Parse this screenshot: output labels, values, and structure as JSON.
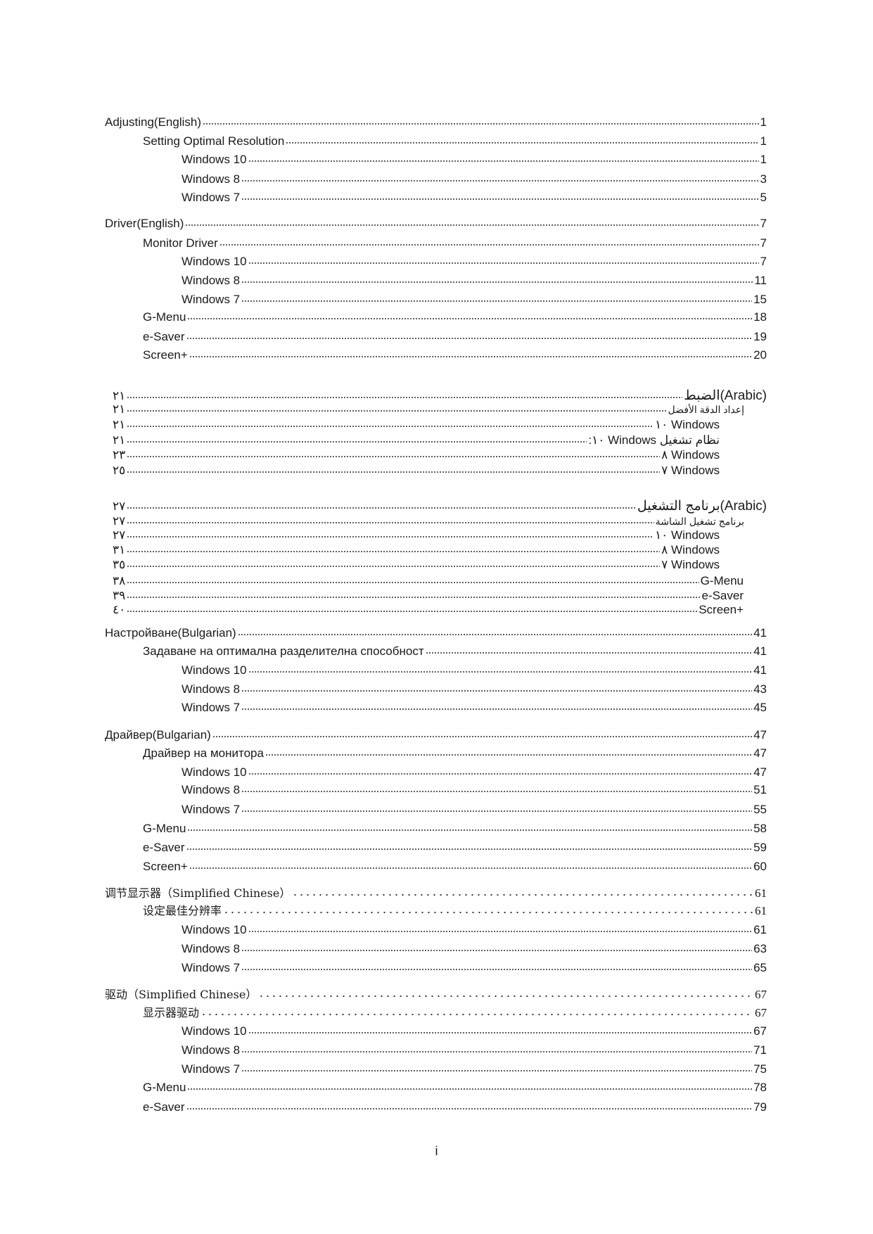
{
  "toc": [
    {
      "text": "Adjusting(English)",
      "page": "1",
      "level": 0
    },
    {
      "text": "Setting Optimal Resolution",
      "page": "1",
      "level": 1
    },
    {
      "text": "Windows 10",
      "page": "1",
      "level": 2
    },
    {
      "text": "Windows 8",
      "page": "3",
      "level": 2
    },
    {
      "text": "Windows 7",
      "page": "5",
      "level": 2
    },
    {
      "text": "Driver(English)",
      "page": "7",
      "level": 0
    },
    {
      "text": "Monitor Driver",
      "page": "7",
      "level": 1
    },
    {
      "text": "Windows 10",
      "page": "7",
      "level": 2
    },
    {
      "text": "Windows 8",
      "page": "11",
      "level": 2
    },
    {
      "text": "Windows 7",
      "page": "15",
      "level": 2
    },
    {
      "text": "G-Menu",
      "page": "18",
      "level": 1
    },
    {
      "text": "e-Saver",
      "page": "19",
      "level": 1
    },
    {
      "text": "Screen+",
      "page": "20",
      "level": 1
    },
    {
      "text": "الضبط(Arabic)",
      "page": "٢١",
      "level": "ar-h"
    },
    {
      "text": "إعداد الدقة الأفضل",
      "page": "٢١",
      "level": "ar-sub"
    },
    {
      "text": "١٠ Windows",
      "page": "٢١",
      "level": "ar-win"
    },
    {
      "text": ":١٠ Windows نظام تشغيل",
      "page": "٢١",
      "level": "ar-win"
    },
    {
      "text": "٨ Windows",
      "page": "٢٣",
      "level": "ar-win"
    },
    {
      "text": "٧ Windows",
      "page": "٢٥",
      "level": "ar-win"
    },
    {
      "text": "برنامج التشغيل(Arabic)",
      "page": "٢٧",
      "level": "ar-h"
    },
    {
      "text": "برنامج تشغيل الشاشة",
      "page": "٢٧",
      "level": "ar-sub"
    },
    {
      "text": "١٠ Windows",
      "page": "٢٧",
      "level": "ar-win"
    },
    {
      "text": "٨ Windows",
      "page": "٣١",
      "level": "ar-win"
    },
    {
      "text": "٧ Windows",
      "page": "٣٥",
      "level": "ar-win"
    },
    {
      "text": "G-Menu",
      "page": "٣٨",
      "level": "ar-item"
    },
    {
      "text": "e-Saver",
      "page": "٣٩",
      "level": "ar-item"
    },
    {
      "text": "Screen+",
      "page": "٤٠",
      "level": "ar-item"
    },
    {
      "text": "Настройване(Bulgarian)",
      "page": "41",
      "level": 0
    },
    {
      "text": "Задаване на оптимална разделителна способност",
      "page": "41",
      "level": 1
    },
    {
      "text": "Windows 10",
      "page": "41",
      "level": 2
    },
    {
      "text": "Windows 8",
      "page": "43",
      "level": 2
    },
    {
      "text": "Windows 7",
      "page": "45",
      "level": 2
    },
    {
      "text": "Драйвер(Bulgarian)",
      "page": "47",
      "level": 0
    },
    {
      "text": "Драйвер на монитора",
      "page": "47",
      "level": 1
    },
    {
      "text": "Windows 10",
      "page": "47",
      "level": 2
    },
    {
      "text": "Windows 8",
      "page": "51",
      "level": 2
    },
    {
      "text": "Windows 7",
      "page": "55",
      "level": 2
    },
    {
      "text": "G-Menu",
      "page": "58",
      "level": 1
    },
    {
      "text": "e-Saver",
      "page": "59",
      "level": 1
    },
    {
      "text": "Screen+",
      "page": "60",
      "level": 1
    },
    {
      "text": "调节显示器（Simplified Chinese）",
      "page": "61",
      "level": 0,
      "zh": true
    },
    {
      "text": "设定最佳分辨率",
      "page": "61",
      "level": 1,
      "zh": true
    },
    {
      "text": "Windows 10",
      "page": "61",
      "level": 2
    },
    {
      "text": "Windows 8",
      "page": "63",
      "level": 2
    },
    {
      "text": "Windows 7",
      "page": "65",
      "level": 2
    },
    {
      "text": "驱动（Simplified Chinese）",
      "page": "67",
      "level": 0,
      "zh": true
    },
    {
      "text": "显示器驱动",
      "page": "67",
      "level": 1,
      "zh": true
    },
    {
      "text": "Windows 10",
      "page": "67",
      "level": 2
    },
    {
      "text": "Windows 8",
      "page": "71",
      "level": 2
    },
    {
      "text": "Windows 7",
      "page": "75",
      "level": 2
    },
    {
      "text": "G-Menu",
      "page": "78",
      "level": 1
    },
    {
      "text": "e-Saver",
      "page": "79",
      "level": 1
    }
  ],
  "footer": {
    "page_number": "i"
  }
}
